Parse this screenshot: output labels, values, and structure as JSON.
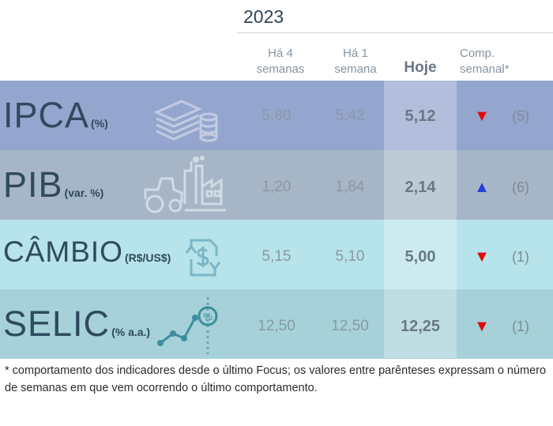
{
  "header": {
    "year": "2023",
    "col_4weeks_l1": "Há 4",
    "col_4weeks_l2": "semanas",
    "col_1week_l1": "Há 1",
    "col_1week_l2": "semana",
    "col_today": "Hoje",
    "col_comp_l1": "Comp.",
    "col_comp_l2": "semanal*"
  },
  "rows": [
    {
      "name": "IPCA",
      "unit": "(%)",
      "weeks4": "5,80",
      "week1": "5,42",
      "today": "5,12",
      "trend": "down",
      "trend_glyph": "▼",
      "weeks": "(5)",
      "bg": "#95a6ce",
      "icon": "money-stack-icon"
    },
    {
      "name": "PIB",
      "unit": "(var. %)",
      "weeks4": "1,20",
      "week1": "1,84",
      "today": "2,14",
      "trend": "up",
      "trend_glyph": "▲",
      "weeks": "(6)",
      "bg": "#a6b6c7",
      "icon": "factory-tractor-icon"
    },
    {
      "name": "CÂMBIO",
      "unit": "(R$/US$)",
      "weeks4": "5,15",
      "week1": "5,10",
      "today": "5,00",
      "trend": "down",
      "trend_glyph": "▼",
      "weeks": "(1)",
      "bg": "#b7e3ea",
      "icon": "currency-exchange-icon"
    },
    {
      "name": "SELIC",
      "unit": "(% a.a.)",
      "weeks4": "12,50",
      "week1": "12,50",
      "today": "12,25",
      "trend": "down",
      "trend_glyph": "▼",
      "weeks": "(1)",
      "bg": "#a6d1d9",
      "icon": "rate-chart-icon"
    }
  ],
  "colors": {
    "down": "#e10a0a",
    "up": "#2340d8"
  },
  "footnote": "* comportamento dos indicadores desde o último Focus; os valores entre parênteses expressam o número de semanas em que vem ocorrendo o último comportamento."
}
